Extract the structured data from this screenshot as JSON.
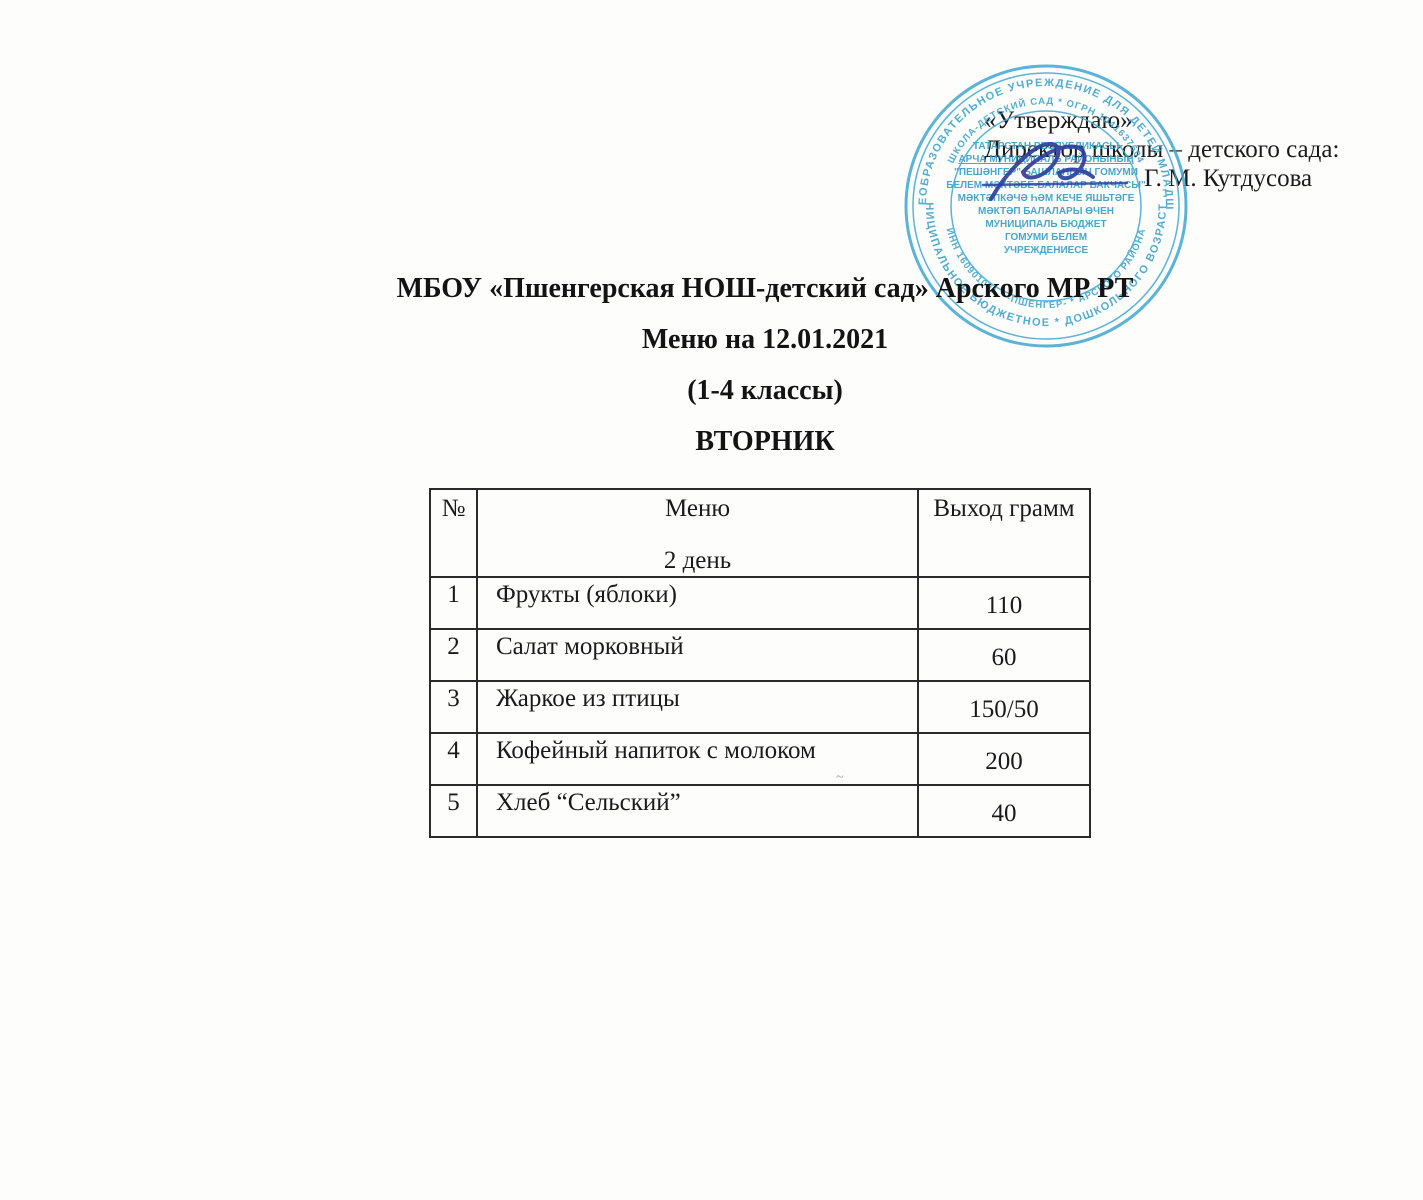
{
  "colors": {
    "paper": "#fdfdfc",
    "ink": "#161616",
    "stamp_cyan": "#45a9d2",
    "signature_blue": "#2e3f9f",
    "table_border": "#2b2b2b"
  },
  "approval": {
    "line1": "«Утверждаю»",
    "line2": "Директор школы – детского сада:",
    "line3": "Г. М. Кутдусова"
  },
  "titles": {
    "school": "МБОУ «Пшенгерская НОШ-детский сад» Арского МР РТ",
    "menu_date": "Меню на 12.01.2021",
    "classes": "(1-4 классы)",
    "weekday": "ВТОРНИК"
  },
  "menu_table": {
    "columns": [
      "№",
      "Меню",
      "Выход грамм"
    ],
    "header_subtitle": "2 день",
    "rows": [
      {
        "num": "1",
        "dish": "Фрукты (яблоки)",
        "weight": "110"
      },
      {
        "num": "2",
        "dish": "Салат морковный",
        "weight": "60"
      },
      {
        "num": "3",
        "dish": "Жаркое из птицы",
        "weight": "150/50"
      },
      {
        "num": "4",
        "dish": "Кофейный напиток с молоком",
        "weight": "200"
      },
      {
        "num": "5",
        "dish": "Хлеб “Сельский”",
        "weight": "40"
      }
    ]
  },
  "stamp": {
    "ring_outer_top": "ОБЩЕОБРАЗОВАТЕЛЬНОЕ УЧРЕЖДЕНИЕ ДЛЯ ДЕТЕЙ МЛАДШЕГО",
    "ring_outer_bottom": "МУНИЦИПАЛЬНОЕ БЮДЖЕТНОЕ * ДОШКОЛЬНОГО ВОЗРАСТА *",
    "ring_inner_top": "ШКОЛА-ДЕТСКИЙ САД * ОГРН 1041637604",
    "ring_inner_bottom": "ИНН 160901001 * -ПШЕНГЕР- * АРСКОГО РАЙОНА",
    "center_lines": [
      "ТАТАРСТАН РЕСПУБЛИКАСЫ",
      "АРЧА МУНИЦИПАЛЬ РАЙОНЫНЫҢ",
      "\"ПЕШӘНГЕР\" БАШЛАНГЫЧ ГОМУМИ",
      "БЕЛЕМ МӘКТӘБЕ-БАЛАЛАР БАКЧАСЫ\"",
      "МӘКТӘПКӘЧӘ ҺӘМ КЕЧЕ ЯШЬТӘГЕ",
      "МӘКТӘП БАЛАЛАРЫ ӨЧЕН",
      "МУНИЦИПАЛЬ БЮДЖЕТ",
      "ГОМУМИ БЕЛЕМ",
      "УЧРЕЖДЕНИЕСЕ"
    ]
  },
  "smudge_mark": "~"
}
